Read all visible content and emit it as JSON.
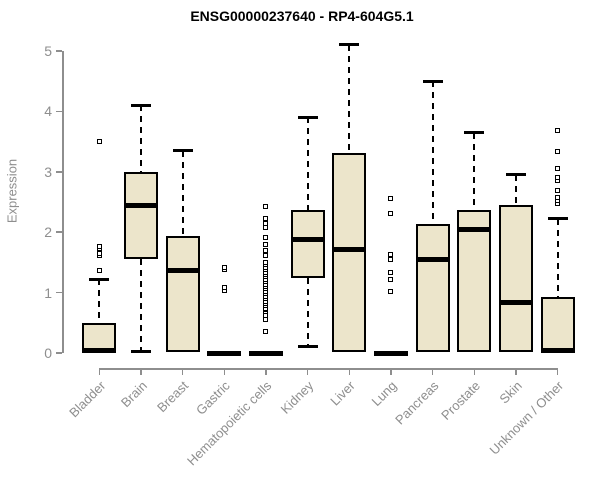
{
  "title": "ENSG00000237640 - RP4-604G5.1",
  "colors": {
    "box_fill": "#ece5cb",
    "box_border": "#000000",
    "median": "#000000",
    "axis": "#8e8e8e",
    "title_color": "#000000",
    "background": "#ffffff"
  },
  "chart_data": {
    "type": "boxplot",
    "title": "ENSG00000237640 - RP4-604G5.1",
    "xlabel": "",
    "ylabel": "Expression",
    "ylim": [
      0,
      5
    ],
    "yticks": [
      0,
      1,
      2,
      3,
      4,
      5
    ],
    "grid": false,
    "legend": "none",
    "categories": [
      "Bladder",
      "Brain",
      "Breast",
      "Gastric",
      "Hematopoietic cells",
      "Kidney",
      "Liver",
      "Lung",
      "Pancreas",
      "Prostate",
      "Skin",
      "Unknown / Other"
    ],
    "series": [
      {
        "name": "Bladder",
        "q1": 0,
        "median": 0.04,
        "q3": 0.5,
        "whisker_low": 0,
        "whisker_high": 1.22,
        "outliers": [
          1.37,
          1.61,
          1.65,
          1.73,
          1.77,
          3.5
        ]
      },
      {
        "name": "Brain",
        "q1": 1.56,
        "median": 2.44,
        "q3": 3.0,
        "whisker_low": 0.02,
        "whisker_high": 4.1,
        "outliers": []
      },
      {
        "name": "Breast",
        "q1": 0.02,
        "median": 1.36,
        "q3": 1.94,
        "whisker_low": 0.02,
        "whisker_high": 3.35,
        "outliers": []
      },
      {
        "name": "Gastric",
        "q1": 0,
        "median": 0,
        "q3": 0,
        "whisker_low": 0,
        "whisker_high": 0,
        "outliers": [
          1.04,
          1.08,
          1.38,
          1.42
        ]
      },
      {
        "name": "Hematopoietic cells",
        "q1": 0,
        "median": 0,
        "q3": 0,
        "whisker_low": 0,
        "whisker_high": 0,
        "outliers": [
          0.36,
          0.55,
          0.62,
          0.68,
          0.72,
          0.74,
          0.78,
          0.82,
          0.86,
          0.9,
          0.94,
          0.98,
          1.02,
          1.06,
          1.1,
          1.14,
          1.18,
          1.22,
          1.26,
          1.3,
          1.34,
          1.38,
          1.42,
          1.46,
          1.5,
          1.61,
          1.7,
          1.79,
          1.91,
          2.08,
          2.15,
          2.22,
          2.42
        ]
      },
      {
        "name": "Kidney",
        "q1": 1.24,
        "median": 1.88,
        "q3": 2.36,
        "whisker_low": 0.1,
        "whisker_high": 3.9,
        "outliers": []
      },
      {
        "name": "Liver",
        "q1": 0.02,
        "median": 1.71,
        "q3": 3.31,
        "whisker_low": 0.02,
        "whisker_high": 5.1,
        "outliers": []
      },
      {
        "name": "Lung",
        "q1": 0,
        "median": 0,
        "q3": 0,
        "whisker_low": 0,
        "whisker_high": 0,
        "outliers": [
          1.02,
          1.22,
          1.33,
          1.55,
          1.63,
          2.31,
          2.56
        ]
      },
      {
        "name": "Pancreas",
        "q1": 0.02,
        "median": 1.55,
        "q3": 2.13,
        "whisker_low": 0.02,
        "whisker_high": 4.5,
        "outliers": []
      },
      {
        "name": "Prostate",
        "q1": 0.02,
        "median": 2.04,
        "q3": 2.37,
        "whisker_low": 0.02,
        "whisker_high": 3.65,
        "outliers": []
      },
      {
        "name": "Skin",
        "q1": 0.02,
        "median": 0.83,
        "q3": 2.45,
        "whisker_low": 0.02,
        "whisker_high": 2.95,
        "outliers": []
      },
      {
        "name": "Unknown / Other",
        "q1": 0,
        "median": 0.04,
        "q3": 0.92,
        "whisker_low": 0,
        "whisker_high": 2.22,
        "outliers": [
          2.47,
          2.52,
          2.57,
          2.69,
          2.86,
          2.91,
          3.05,
          3.33,
          3.69
        ]
      }
    ]
  }
}
